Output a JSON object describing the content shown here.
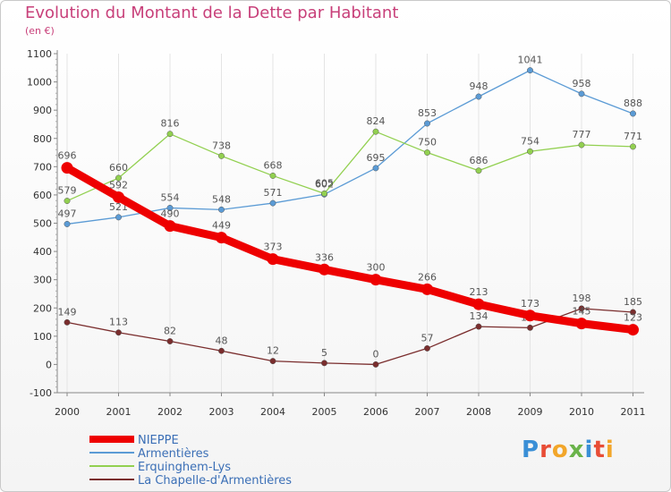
{
  "chart_data": {
    "type": "line",
    "title": "Evolution du Montant de la Dette par Habitant",
    "subtitle": "(en €)",
    "x": [
      "2000",
      "2001",
      "2002",
      "2003",
      "2004",
      "2005",
      "2006",
      "2007",
      "2008",
      "2009",
      "2010",
      "2011"
    ],
    "ylim": [
      -100,
      1100
    ],
    "yticks": [
      -100,
      0,
      100,
      200,
      300,
      400,
      500,
      600,
      700,
      800,
      900,
      1000,
      1100
    ],
    "series": [
      {
        "name": "NIEPPE",
        "color": "#ee0000",
        "values": [
          696,
          592,
          490,
          449,
          373,
          336,
          300,
          266,
          213,
          173,
          145,
          123
        ]
      },
      {
        "name": "Armentières",
        "color": "#5b9bd5",
        "values": [
          497,
          521,
          554,
          548,
          571,
          602,
          695,
          853,
          948,
          1041,
          958,
          888
        ]
      },
      {
        "name": "Erquinghem-Lys",
        "color": "#92d050",
        "values": [
          579,
          660,
          816,
          738,
          668,
          605,
          824,
          750,
          686,
          754,
          777,
          771
        ]
      },
      {
        "name": "La Chapelle-d'Armentières",
        "color": "#7a2d2d",
        "values": [
          149,
          113,
          82,
          48,
          12,
          5,
          0,
          57,
          134,
          130,
          198,
          185
        ]
      }
    ],
    "legend": [
      "NIEPPE",
      "Armentières",
      "Erquinghem-Lys",
      "La Chapelle-d'Armentières"
    ]
  },
  "logo": {
    "text": "Proxiti"
  }
}
